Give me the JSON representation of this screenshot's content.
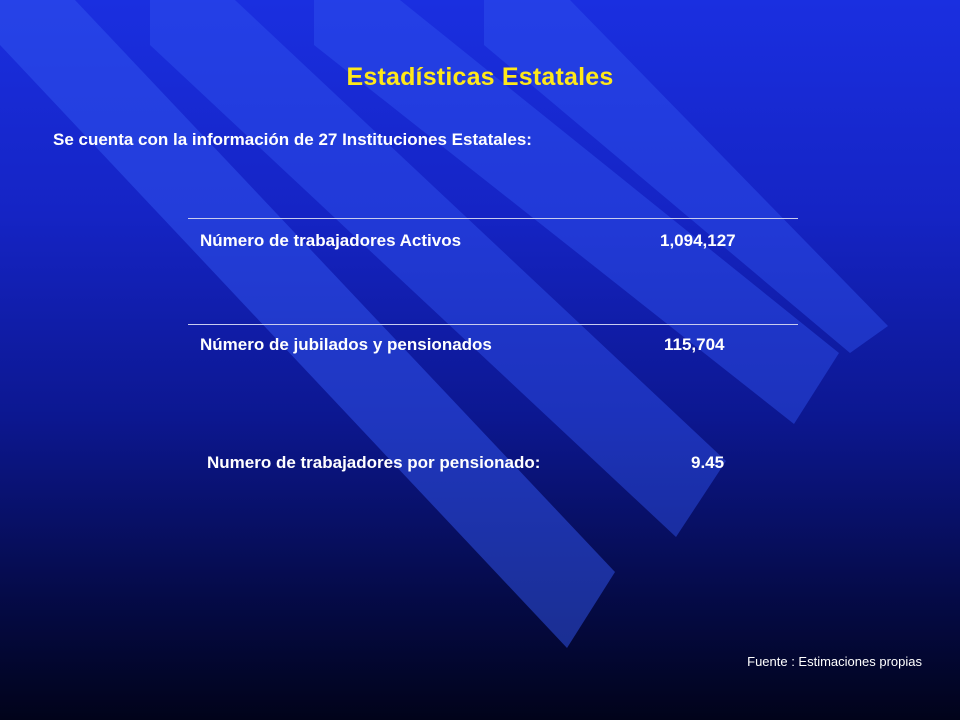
{
  "slide": {
    "title": "Estadísticas Estatales",
    "intro": "Se cuenta con la información de 27 Instituciones Estatales:",
    "rows": [
      {
        "label": "Número de trabajadores Activos",
        "value": "1,094,127"
      },
      {
        "label": "Número de jubilados y pensionados",
        "value": "115,704"
      }
    ],
    "ratio": {
      "label": "Numero de trabajadores por pensionado:",
      "value": "9.45"
    },
    "source": "Fuente : Estimaciones propias"
  },
  "colors": {
    "title": "#ffe81a",
    "text": "#ffffff",
    "stripe": "#3155ef",
    "background_top": "#1a2fe0",
    "background_bottom": "#01031a"
  }
}
